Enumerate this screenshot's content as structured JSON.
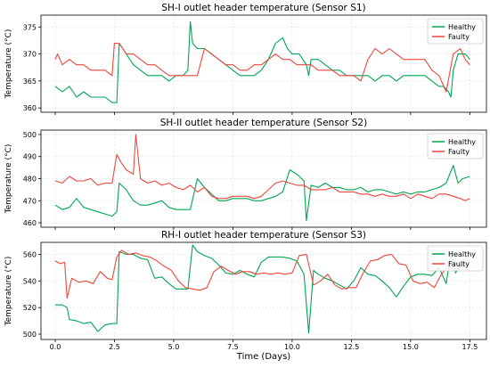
{
  "colors": {
    "healthy": "#00a651",
    "faulty": "#f0463c",
    "grid": "#e6e6e6",
    "axis": "#000000"
  },
  "xlabel": "Time (Days)",
  "chart_data": [
    {
      "type": "line",
      "title": "SH-I outlet header temperature (Sensor S1)",
      "xlabel": "",
      "ylabel": "Temperature (°C)",
      "xlim": [
        -0.6,
        18.2
      ],
      "ylim": [
        359.2,
        377.2
      ],
      "xticks": [
        0.0,
        2.5,
        5.0,
        7.5,
        10.0,
        12.5,
        15.0,
        17.5
      ],
      "xticklabels": [
        "0.0",
        "2.5",
        "5.0",
        "7.5",
        "10.0",
        "12.5",
        "15.0",
        "17.5"
      ],
      "yticks": [
        360,
        365,
        370,
        375
      ],
      "grid": true,
      "legend": "top-right",
      "series": [
        {
          "name": "Healthy",
          "x": [
            0.0,
            0.3,
            0.6,
            0.9,
            1.2,
            1.5,
            1.8,
            2.1,
            2.4,
            2.6,
            2.7,
            3.0,
            3.3,
            3.6,
            3.9,
            4.2,
            4.5,
            4.8,
            5.1,
            5.4,
            5.6,
            5.7,
            5.8,
            6.0,
            6.3,
            6.6,
            6.9,
            7.2,
            7.5,
            7.8,
            8.1,
            8.4,
            8.7,
            9.0,
            9.3,
            9.6,
            9.8,
            10.0,
            10.3,
            10.6,
            10.7,
            10.8,
            11.1,
            11.4,
            11.7,
            12.0,
            12.3,
            12.6,
            12.9,
            13.2,
            13.5,
            13.8,
            14.1,
            14.4,
            14.7,
            15.0,
            15.3,
            15.6,
            15.9,
            16.2,
            16.4,
            16.6,
            16.7,
            16.8,
            17.0,
            17.3,
            17.5
          ],
          "y": [
            364,
            363,
            364,
            362,
            363,
            362,
            362,
            362,
            361,
            361,
            372,
            370,
            368,
            367,
            366,
            366,
            366,
            365,
            366,
            366,
            367,
            376,
            372,
            371,
            371,
            370,
            369,
            368,
            367,
            366,
            366,
            366,
            367,
            369,
            372,
            373,
            371,
            370,
            370,
            368,
            366,
            369,
            369,
            368,
            367,
            367,
            366,
            366,
            366,
            366,
            365,
            366,
            366,
            365,
            366,
            366,
            366,
            366,
            365,
            364,
            364,
            363,
            362,
            367,
            370,
            370,
            369
          ]
        },
        {
          "name": "Faulty",
          "x": [
            0.0,
            0.1,
            0.3,
            0.6,
            0.9,
            1.2,
            1.5,
            1.8,
            2.1,
            2.4,
            2.5,
            2.7,
            3.0,
            3.3,
            3.6,
            3.9,
            4.2,
            4.5,
            4.8,
            5.1,
            5.4,
            5.7,
            6.0,
            6.3,
            6.6,
            6.9,
            7.2,
            7.5,
            7.8,
            8.1,
            8.4,
            8.7,
            9.0,
            9.3,
            9.6,
            9.9,
            10.2,
            10.5,
            10.8,
            11.1,
            11.4,
            11.7,
            12.0,
            12.3,
            12.6,
            12.9,
            13.2,
            13.5,
            13.8,
            14.1,
            14.4,
            14.7,
            15.0,
            15.3,
            15.6,
            15.9,
            16.2,
            16.5,
            16.8,
            17.1,
            17.3,
            17.5
          ],
          "y": [
            369,
            370,
            368,
            369,
            368,
            368,
            367,
            367,
            367,
            366,
            372,
            372,
            370,
            370,
            369,
            368,
            368,
            367,
            366,
            366,
            366,
            366,
            366,
            371,
            370,
            369,
            368,
            368,
            367,
            367,
            368,
            368,
            369,
            370,
            369,
            369,
            368,
            368,
            368,
            367,
            367,
            367,
            366,
            366,
            366,
            365,
            369,
            371,
            370,
            371,
            370,
            369,
            369,
            369,
            369,
            367,
            366,
            363,
            370,
            371,
            369,
            368
          ]
        }
      ]
    },
    {
      "type": "line",
      "title": "SH-II outlet header temperature (Sensor S2)",
      "xlabel": "",
      "ylabel": "Temperature (°C)",
      "xlim": [
        -0.6,
        18.2
      ],
      "ylim": [
        458,
        502
      ],
      "xticks": [
        0.0,
        2.5,
        5.0,
        7.5,
        10.0,
        12.5,
        15.0,
        17.5
      ],
      "xticklabels": [
        "0.0",
        "2.5",
        "5.0",
        "7.5",
        "10.0",
        "12.5",
        "15.0",
        "17.5"
      ],
      "yticks": [
        460,
        470,
        480,
        490,
        500
      ],
      "grid": true,
      "legend": "top-right",
      "series": [
        {
          "name": "Healthy",
          "x": [
            0.0,
            0.3,
            0.6,
            0.9,
            1.2,
            1.5,
            1.8,
            2.1,
            2.4,
            2.6,
            2.7,
            3.0,
            3.3,
            3.6,
            3.9,
            4.2,
            4.5,
            4.8,
            5.1,
            5.4,
            5.7,
            6.0,
            6.3,
            6.6,
            6.9,
            7.2,
            7.5,
            7.8,
            8.1,
            8.4,
            8.7,
            9.0,
            9.3,
            9.6,
            9.9,
            10.2,
            10.5,
            10.6,
            10.8,
            11.1,
            11.4,
            11.7,
            12.0,
            12.3,
            12.6,
            12.9,
            13.2,
            13.5,
            13.8,
            14.1,
            14.4,
            14.7,
            15.0,
            15.3,
            15.6,
            15.9,
            16.2,
            16.5,
            16.8,
            17.0,
            17.2,
            17.5
          ],
          "y": [
            468,
            466,
            467,
            471,
            467,
            466,
            465,
            464,
            463,
            465,
            478,
            475,
            470,
            468,
            468,
            469,
            470,
            467,
            466,
            466,
            466,
            480,
            476,
            473,
            470,
            470,
            471,
            471,
            471,
            470,
            470,
            471,
            472,
            474,
            484,
            482,
            479,
            461,
            477,
            476,
            478,
            476,
            476,
            475,
            475,
            476,
            474,
            475,
            475,
            474,
            473,
            474,
            473,
            474,
            474,
            475,
            476,
            478,
            486,
            478,
            480,
            481
          ]
        },
        {
          "name": "Faulty",
          "x": [
            0.0,
            0.3,
            0.6,
            0.9,
            1.2,
            1.5,
            1.8,
            2.1,
            2.4,
            2.6,
            2.8,
            3.0,
            3.3,
            3.4,
            3.6,
            3.9,
            4.2,
            4.5,
            4.8,
            5.1,
            5.4,
            5.7,
            6.0,
            6.3,
            6.6,
            6.9,
            7.2,
            7.5,
            7.8,
            8.1,
            8.4,
            8.7,
            9.0,
            9.3,
            9.6,
            9.9,
            10.2,
            10.5,
            10.8,
            11.1,
            11.4,
            11.7,
            12.0,
            12.3,
            12.6,
            12.9,
            13.2,
            13.5,
            13.8,
            14.1,
            14.4,
            14.7,
            15.0,
            15.3,
            15.6,
            15.9,
            16.2,
            16.5,
            16.8,
            17.1,
            17.3,
            17.5
          ],
          "y": [
            479,
            478,
            481,
            479,
            479,
            480,
            477,
            478,
            478,
            491,
            487,
            484,
            482,
            500,
            480,
            478,
            479,
            477,
            478,
            476,
            475,
            477,
            474,
            476,
            472,
            471,
            471,
            472,
            472,
            472,
            471,
            472,
            475,
            478,
            479,
            478,
            477,
            477,
            475,
            475,
            475,
            476,
            474,
            474,
            474,
            473,
            473,
            472,
            473,
            472,
            472,
            473,
            471,
            473,
            472,
            471,
            473,
            473,
            472,
            471,
            470,
            471
          ]
        }
      ]
    },
    {
      "type": "line",
      "title": "RH-I outlet header temperature (Sensor S3)",
      "xlabel": "Time (Days)",
      "ylabel": "Temperature (°C)",
      "xlim": [
        -0.6,
        18.2
      ],
      "ylim": [
        496,
        569
      ],
      "xticks": [
        0.0,
        2.5,
        5.0,
        7.5,
        10.0,
        12.5,
        15.0,
        17.5
      ],
      "xticklabels": [
        "0.0",
        "2.5",
        "5.0",
        "7.5",
        "10.0",
        "12.5",
        "15.0",
        "17.5"
      ],
      "yticks": [
        500,
        520,
        540,
        560
      ],
      "grid": true,
      "legend": "top-right",
      "series": [
        {
          "name": "Healthy",
          "x": [
            0.0,
            0.3,
            0.5,
            0.6,
            0.9,
            1.2,
            1.5,
            1.8,
            2.1,
            2.4,
            2.6,
            2.7,
            3.0,
            3.3,
            3.6,
            3.9,
            4.2,
            4.5,
            4.8,
            5.1,
            5.4,
            5.6,
            5.8,
            6.0,
            6.3,
            6.6,
            6.9,
            7.2,
            7.5,
            7.8,
            8.1,
            8.4,
            8.7,
            9.0,
            9.3,
            9.6,
            9.9,
            10.2,
            10.5,
            10.7,
            10.9,
            11.1,
            11.4,
            11.7,
            12.0,
            12.3,
            12.6,
            12.9,
            13.2,
            13.5,
            13.8,
            14.1,
            14.4,
            14.7,
            15.0,
            15.3,
            15.6,
            15.9,
            16.2,
            16.5,
            16.7,
            16.9,
            17.2,
            17.5
          ],
          "y": [
            522,
            522,
            520,
            511,
            510,
            508,
            509,
            502,
            507,
            508,
            508,
            562,
            560,
            560,
            557,
            556,
            542,
            543,
            538,
            534,
            534,
            534,
            567,
            562,
            559,
            557,
            552,
            546,
            545,
            548,
            545,
            543,
            554,
            558,
            558,
            558,
            557,
            555,
            545,
            501,
            548,
            545,
            542,
            540,
            537,
            534,
            540,
            550,
            545,
            544,
            540,
            535,
            528,
            536,
            543,
            545,
            545,
            544,
            550,
            538,
            562,
            546,
            555,
            560
          ]
        },
        {
          "name": "Faulty",
          "x": [
            0.0,
            0.2,
            0.4,
            0.5,
            0.7,
            1.0,
            1.3,
            1.6,
            1.9,
            2.2,
            2.4,
            2.6,
            2.8,
            3.1,
            3.4,
            3.7,
            4.0,
            4.3,
            4.6,
            4.9,
            5.2,
            5.5,
            5.8,
            6.1,
            6.4,
            6.7,
            7.0,
            7.3,
            7.6,
            7.9,
            8.2,
            8.5,
            8.8,
            9.1,
            9.4,
            9.7,
            10.0,
            10.3,
            10.6,
            10.9,
            11.2,
            11.5,
            11.8,
            12.1,
            12.4,
            12.7,
            13.0,
            13.3,
            13.6,
            13.9,
            14.2,
            14.5,
            14.8,
            15.1,
            15.4,
            15.7,
            16.0,
            16.3,
            16.6,
            16.9,
            17.2,
            17.5
          ],
          "y": [
            555,
            553,
            554,
            527,
            542,
            539,
            540,
            538,
            547,
            542,
            541,
            558,
            563,
            560,
            561,
            559,
            558,
            555,
            551,
            548,
            540,
            535,
            534,
            533,
            535,
            547,
            551,
            548,
            545,
            547,
            547,
            545,
            546,
            545,
            546,
            545,
            546,
            559,
            560,
            537,
            540,
            545,
            537,
            534,
            535,
            535,
            546,
            555,
            556,
            559,
            560,
            553,
            552,
            540,
            538,
            539,
            535,
            545,
            551,
            548,
            552,
            556
          ]
        }
      ]
    }
  ]
}
